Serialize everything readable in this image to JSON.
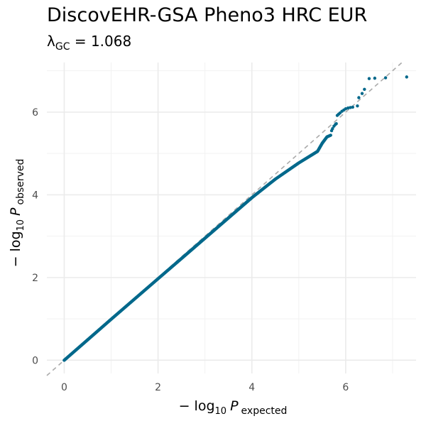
{
  "chart_data": {
    "type": "scatter",
    "title": "DiscovEHR-GSA Pheno3 HRC EUR",
    "subtitle": {
      "lambda_symbol": "λ",
      "lambda_subscript": "GC",
      "equals": " = ",
      "value": "1.068"
    },
    "xlabel": {
      "prefix": "− log",
      "base": "10",
      "variable": "P",
      "subscript": "expected"
    },
    "ylabel": {
      "prefix": "− log",
      "base": "10",
      "variable": "P",
      "subscript": "observed"
    },
    "xlim": [
      -0.37,
      7.5
    ],
    "ylim": [
      -0.32,
      7.2
    ],
    "x_ticks": [
      0,
      2,
      4,
      6
    ],
    "y_ticks": [
      0,
      2,
      4,
      6
    ],
    "x_tick_labels": [
      "0",
      "2",
      "4",
      "6"
    ],
    "y_tick_labels": [
      "0",
      "2",
      "4",
      "6"
    ],
    "grid": true,
    "reference_line": {
      "slope": 1,
      "intercept": 0,
      "color": "#aaaaaa",
      "style": "dashed"
    },
    "point_color": "#00688b",
    "series": [
      {
        "bulk_curve": [
          [
            0.0,
            0.0
          ],
          [
            1.0,
            0.99
          ],
          [
            2.0,
            1.97
          ],
          [
            3.0,
            2.95
          ],
          [
            3.5,
            3.44
          ],
          [
            4.0,
            3.93
          ],
          [
            4.5,
            4.38
          ],
          [
            5.0,
            4.77
          ],
          [
            5.3,
            4.98
          ],
          [
            5.4,
            5.05
          ],
          [
            5.5,
            5.25
          ],
          [
            5.6,
            5.4
          ],
          [
            5.68,
            5.44
          ]
        ],
        "tail_points": [
          [
            5.7,
            5.55
          ],
          [
            5.72,
            5.6
          ],
          [
            5.75,
            5.66
          ],
          [
            5.78,
            5.7
          ],
          [
            5.8,
            5.72
          ],
          [
            5.82,
            5.92
          ],
          [
            5.85,
            5.95
          ],
          [
            5.88,
            5.98
          ],
          [
            5.92,
            6.02
          ],
          [
            5.96,
            6.05
          ],
          [
            6.0,
            6.08
          ],
          [
            6.05,
            6.1
          ],
          [
            6.1,
            6.11
          ],
          [
            6.15,
            6.12
          ],
          [
            6.25,
            6.15
          ],
          [
            6.28,
            6.35
          ],
          [
            6.35,
            6.45
          ],
          [
            6.4,
            6.55
          ],
          [
            6.5,
            6.81
          ],
          [
            6.62,
            6.82
          ],
          [
            6.85,
            6.83
          ],
          [
            7.3,
            6.85
          ]
        ]
      }
    ]
  }
}
